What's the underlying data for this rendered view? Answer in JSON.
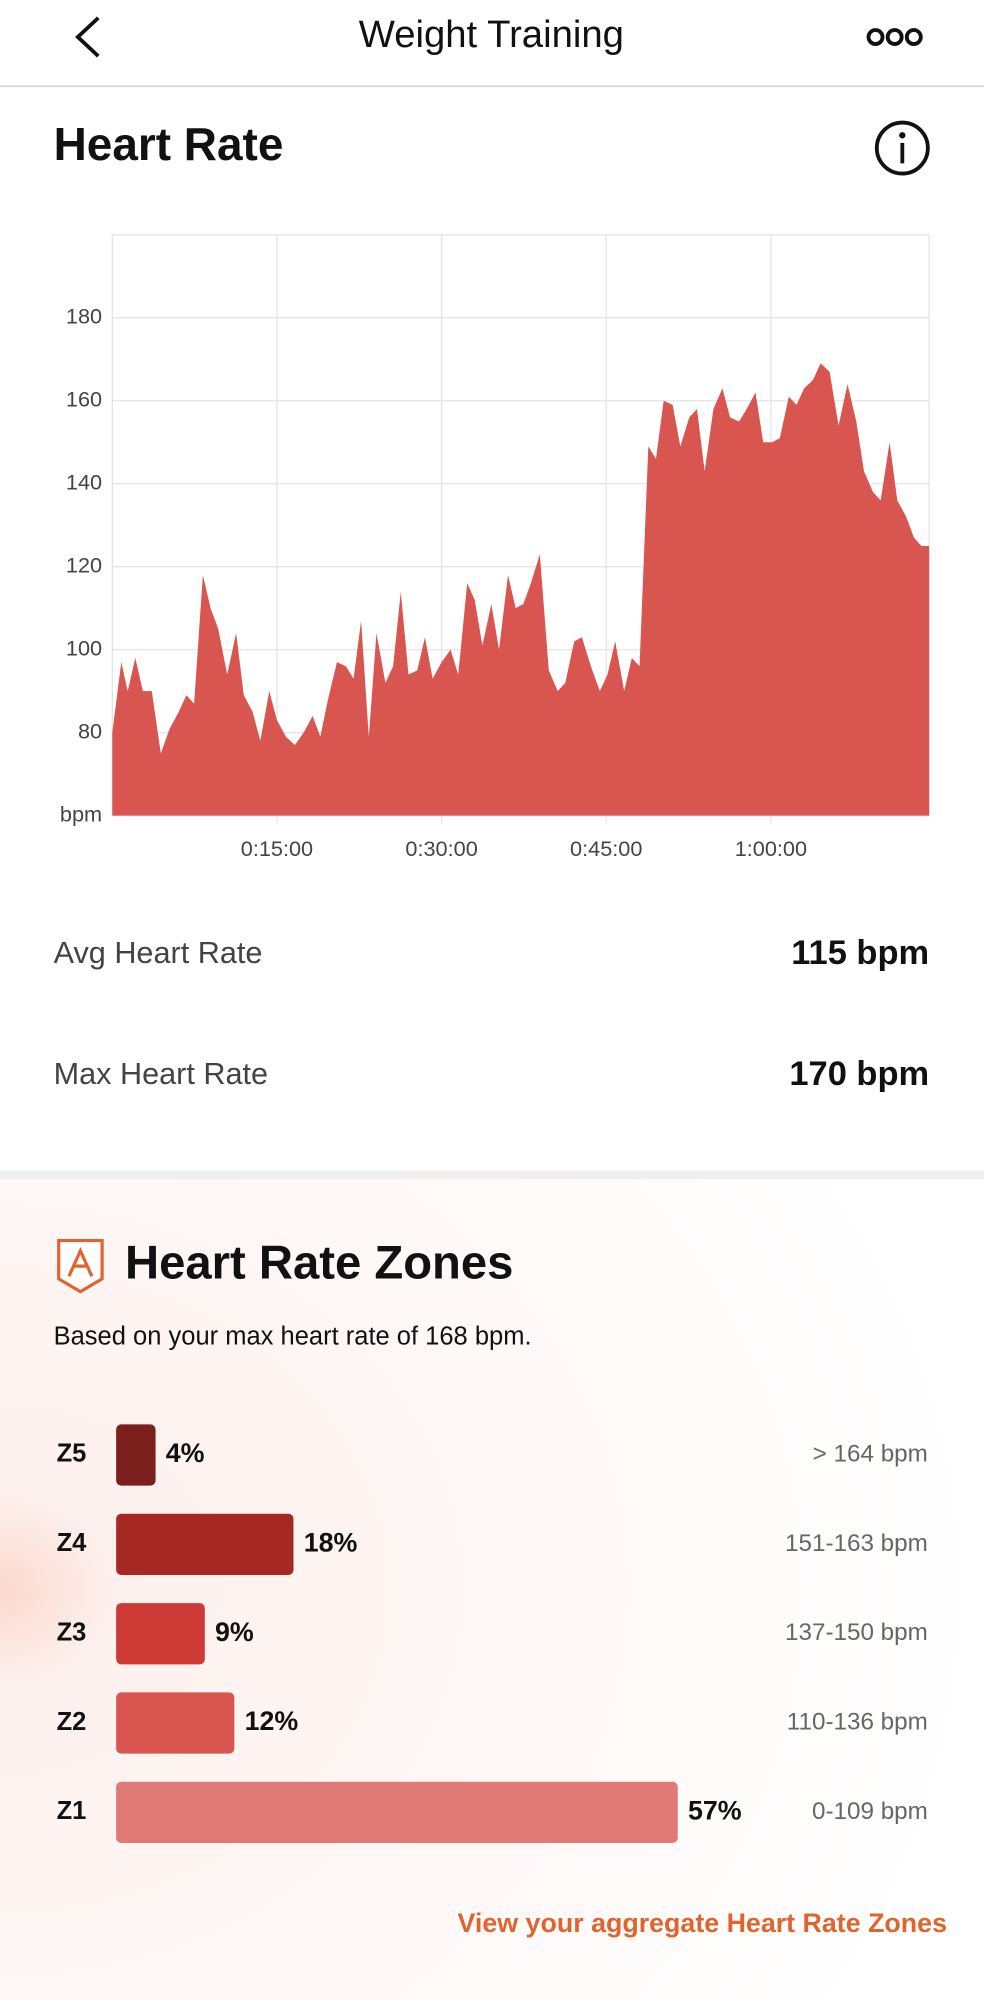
{
  "header": {
    "title": "Weight Training"
  },
  "chart_data": [
    {
      "type": "area",
      "title": "Heart Rate",
      "color": "#d95650",
      "grid": true,
      "x": [
        0,
        49,
        84,
        126,
        167,
        216,
        265,
        314,
        363,
        405,
        447,
        495,
        537,
        579,
        628,
        677,
        719,
        767,
        809,
        858,
        900,
        949,
        998,
        1046,
        1095,
        1137,
        1179,
        1228,
        1277,
        1319,
        1360,
        1402,
        1444,
        1493,
        1535,
        1577,
        1619,
        1667,
        1709,
        1751,
        1800,
        1849,
        1891,
        1940,
        1981,
        2023,
        2072,
        2114,
        2163,
        2205,
        2247,
        2288,
        2337,
        2386,
        2435,
        2476,
        2525,
        2567,
        2616,
        2665,
        2707,
        2749,
        2798,
        2840,
        2882,
        2930,
        2972,
        3014,
        3063,
        3105,
        3154,
        3196,
        3238,
        3286,
        3335,
        3377,
        3426,
        3468,
        3516,
        3558,
        3607,
        3649,
        3698,
        3740,
        3782,
        3830,
        3872,
        3921,
        3970,
        4019,
        4067,
        4109,
        4158,
        4200,
        4249,
        4291,
        4340,
        4382,
        4423,
        4465
      ],
      "values": [
        80,
        97,
        90,
        98,
        90,
        90,
        75,
        81,
        85,
        89,
        87,
        118,
        110,
        105,
        94,
        104,
        89,
        85,
        78,
        90,
        83,
        79,
        77,
        80,
        84,
        79,
        88,
        97,
        96,
        93,
        107,
        79,
        104,
        92,
        96,
        114,
        94,
        95,
        103,
        93,
        97,
        100,
        94,
        116,
        112,
        101,
        111,
        100,
        118,
        110,
        111,
        116,
        123,
        95,
        90,
        92,
        102,
        103,
        96,
        90,
        94,
        102,
        90,
        98,
        96,
        149,
        146,
        160,
        159,
        149,
        156,
        158,
        143,
        158,
        163,
        156,
        155,
        158,
        162,
        150,
        150,
        151,
        161,
        159,
        163,
        165,
        169,
        167,
        154,
        164,
        155,
        143,
        138,
        136,
        150,
        136,
        132,
        127,
        125,
        125
      ],
      "xlim": [
        0,
        4465
      ],
      "xticks": [
        {
          "value": 900,
          "label": "0:15:00"
        },
        {
          "value": 1800,
          "label": "0:30:00"
        },
        {
          "value": 2700,
          "label": "0:45:00"
        },
        {
          "value": 3600,
          "label": "1:00:00"
        }
      ],
      "ylim": [
        60,
        200
      ],
      "yticks": [
        {
          "value": 60,
          "label": "bpm"
        },
        80,
        100,
        120,
        140,
        160,
        180
      ]
    },
    {
      "type": "bar",
      "title": "Heart Rate Zones",
      "subtitle": "Based on your max heart rate of 168 bpm.",
      "categories": [
        "Z5",
        "Z4",
        "Z3",
        "Z2",
        "Z1"
      ],
      "values": [
        4,
        18,
        9,
        12,
        57
      ],
      "value_labels": [
        "4%",
        "18%",
        "9%",
        "12%",
        "57%"
      ],
      "colors": [
        "#7b1f1c",
        "#a52822",
        "#cc3a33",
        "#d95650",
        "#e07a76"
      ],
      "ranges": [
        "> 164 bpm",
        "151-163 bpm",
        "137-150 bpm",
        "110-136 bpm",
        "0-109 bpm"
      ]
    }
  ],
  "stats": [
    {
      "label": "Avg Heart Rate",
      "value": "115 bpm"
    },
    {
      "label": "Max Heart Rate",
      "value": "170 bpm"
    }
  ],
  "link": "View your aggregate Heart Rate Zones"
}
